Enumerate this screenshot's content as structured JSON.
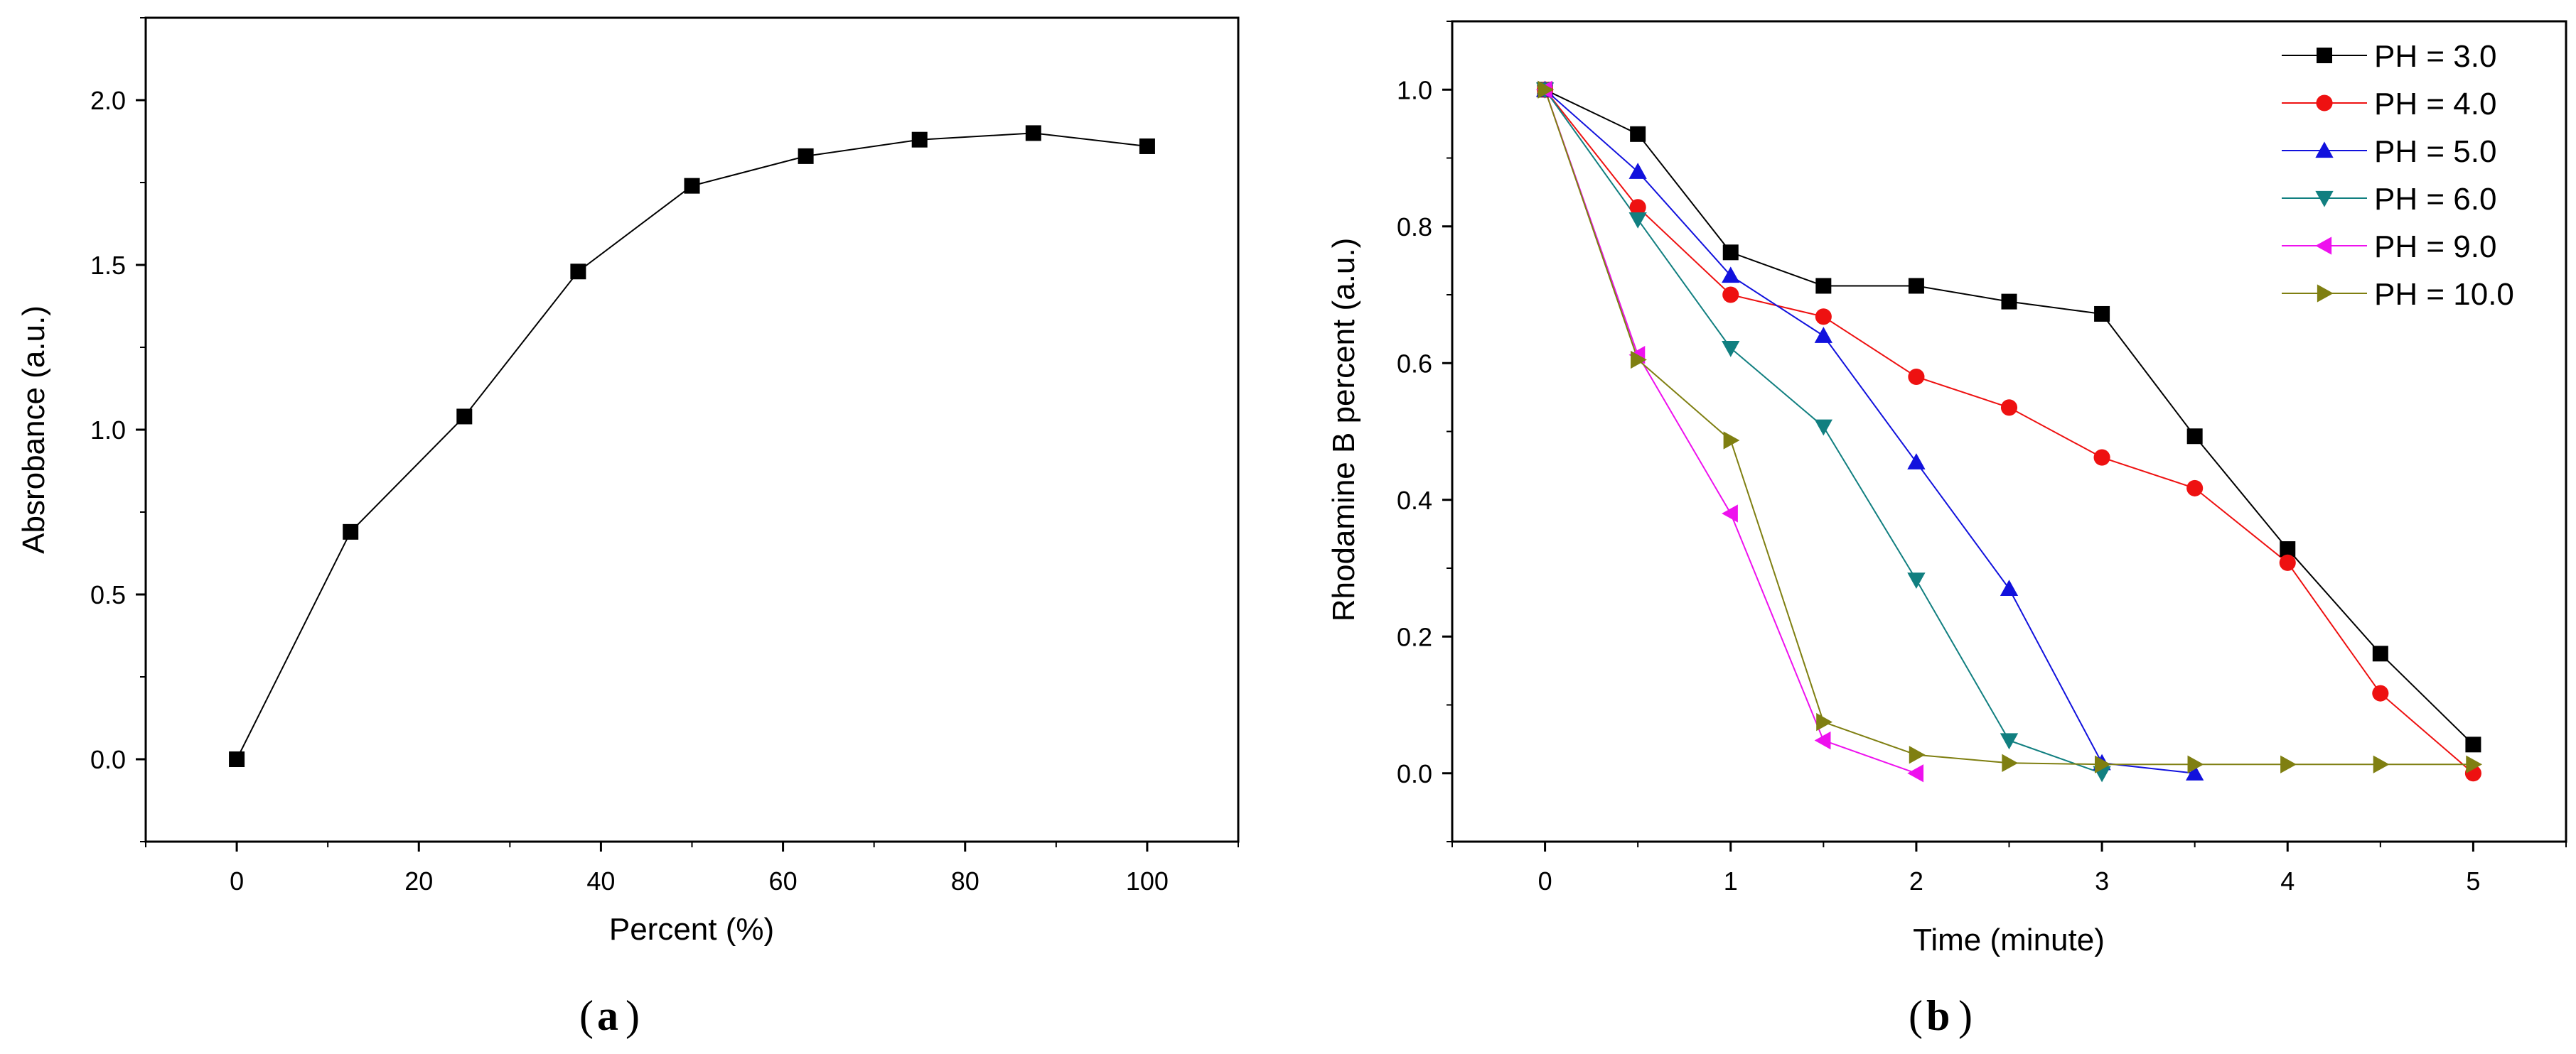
{
  "chart_data": [
    {
      "type": "line",
      "panel_label": "a",
      "title": "",
      "xlabel": "Percent (%)",
      "ylabel": "Absrobance (a.u.)",
      "xlim": [
        -10,
        110
      ],
      "ylim": [
        -0.25,
        2.25
      ],
      "xticks": [
        0,
        20,
        40,
        60,
        80,
        100
      ],
      "yticks": [
        0.0,
        0.5,
        1.0,
        1.5,
        2.0
      ],
      "xtick_labels": [
        "0",
        "20",
        "40",
        "60",
        "80",
        "100"
      ],
      "ytick_labels": [
        "0.0",
        "0.5",
        "1.0",
        "1.5",
        "2.0"
      ],
      "grid": false,
      "series": [
        {
          "name": "",
          "marker": "square",
          "color": "#000000",
          "x": [
            0,
            12.5,
            25,
            37.5,
            50,
            62.5,
            75,
            87.5,
            100
          ],
          "values": [
            0.0,
            0.69,
            1.04,
            1.48,
            1.74,
            1.83,
            1.88,
            1.9,
            1.86
          ]
        }
      ]
    },
    {
      "type": "line",
      "panel_label": "b",
      "title": "",
      "xlabel": "Time (minute)",
      "ylabel": "Rhodamine B percent (a.u.)",
      "xlim": [
        -0.5,
        5.5
      ],
      "ylim": [
        -0.1,
        1.1
      ],
      "xticks": [
        0,
        1,
        2,
        3,
        4,
        5
      ],
      "yticks": [
        0.0,
        0.2,
        0.4,
        0.6,
        0.8,
        1.0
      ],
      "xtick_labels": [
        "0",
        "1",
        "2",
        "3",
        "4",
        "5"
      ],
      "ytick_labels": [
        "0.0",
        "0.2",
        "0.4",
        "0.6",
        "0.8",
        "1.0"
      ],
      "grid": false,
      "legend_position": "top-right",
      "series": [
        {
          "name": "PH = 3.0",
          "marker": "square",
          "color": "#000000",
          "x": [
            0,
            0.5,
            1,
            1.5,
            2,
            2.5,
            3,
            3.5,
            4,
            4.5,
            5
          ],
          "values": [
            1.0,
            0.935,
            0.762,
            0.713,
            0.713,
            0.69,
            0.672,
            0.493,
            0.328,
            0.175,
            0.042
          ]
        },
        {
          "name": "PH = 4.0",
          "marker": "circle",
          "color": "#ee1111",
          "x": [
            0,
            0.5,
            1,
            1.5,
            2,
            2.5,
            3,
            3.5,
            4,
            4.5,
            5
          ],
          "values": [
            1.0,
            0.828,
            0.7,
            0.668,
            0.58,
            0.535,
            0.462,
            0.417,
            0.308,
            0.117,
            0.0
          ]
        },
        {
          "name": "PH = 5.0",
          "marker": "triangle-up",
          "color": "#1111dd",
          "x": [
            0,
            0.5,
            1,
            1.5,
            2,
            2.5,
            3,
            3.5
          ],
          "values": [
            1.0,
            0.88,
            0.728,
            0.64,
            0.455,
            0.27,
            0.015,
            0.0
          ]
        },
        {
          "name": "PH = 6.0",
          "marker": "triangle-down",
          "color": "#117f80",
          "x": [
            0,
            0.5,
            1,
            1.5,
            2,
            2.5,
            3
          ],
          "values": [
            1.0,
            0.81,
            0.622,
            0.507,
            0.283,
            0.048,
            0.0
          ]
        },
        {
          "name": "PH = 9.0",
          "marker": "triangle-left",
          "color": "#ee11ee",
          "x": [
            0,
            0.5,
            1,
            1.5,
            2
          ],
          "values": [
            1.0,
            0.612,
            0.38,
            0.048,
            0.0
          ]
        },
        {
          "name": "PH = 10.0",
          "marker": "triangle-right",
          "color": "#7f7f11",
          "x": [
            0,
            0.5,
            1,
            1.5,
            2,
            2.5,
            3,
            3.5,
            4,
            4.5,
            5
          ],
          "values": [
            1.0,
            0.605,
            0.487,
            0.075,
            0.027,
            0.015,
            0.013,
            0.013,
            0.013,
            0.013,
            0.013
          ]
        }
      ]
    }
  ]
}
